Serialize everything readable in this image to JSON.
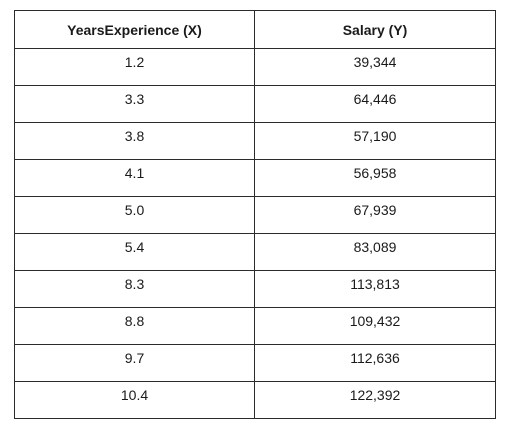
{
  "table": {
    "headers": [
      "YearsExperience (X)",
      "Salary (Y)"
    ],
    "rows": [
      [
        "1.2",
        "39,344"
      ],
      [
        "3.3",
        "64,446"
      ],
      [
        "3.8",
        "57,190"
      ],
      [
        "4.1",
        "56,958"
      ],
      [
        "5.0",
        "67,939"
      ],
      [
        "5.4",
        "83,089"
      ],
      [
        "8.3",
        "113,813"
      ],
      [
        "8.8",
        "109,432"
      ],
      [
        "9.7",
        "112,636"
      ],
      [
        "10.4",
        "122,392"
      ]
    ]
  }
}
